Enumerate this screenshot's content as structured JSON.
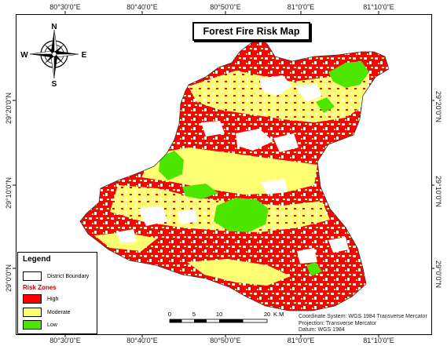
{
  "title": "Forest Fire Risk Map",
  "top_labels": [
    "80°30'0\"E",
    "80°40'0\"E",
    "80°50'0\"E",
    "81°0'0\"E",
    "81°10'0\"E"
  ],
  "bottom_labels": [
    "80°30'0\"E",
    "80°40'0\"E",
    "80°50'0\"E",
    "81°0'0\"E",
    "81°10'0\"E"
  ],
  "left_labels": [
    "29°20'0\"N",
    "29°10'0\"N",
    "29°0'0\"N"
  ],
  "right_labels": [
    "29°20'0\"N",
    "29°10'0\"N",
    "29°0'0\"N"
  ],
  "compass": {
    "n": "N",
    "s": "S",
    "e": "E",
    "w": "W"
  },
  "legend": {
    "title": "Legend",
    "boundary_label": "District Boundary",
    "zones_title": "Risk Zones",
    "items": [
      {
        "label": "High",
        "color": "#ff0000"
      },
      {
        "label": "Moderate",
        "color": "#ffff73"
      },
      {
        "label": "Low",
        "color": "#4ce600"
      }
    ]
  },
  "scale": {
    "ticks": [
      "0",
      "5",
      "10",
      "20"
    ],
    "unit": "K.M"
  },
  "info": {
    "coordinate_system": "Coordinate System: WGS 1984 Transverse Mercator",
    "projection": "Projection: Transverse Mercator",
    "datum": "Datum: WGS 1984"
  },
  "colors": {
    "high": "#ff0000",
    "moderate": "#ffff73",
    "low": "#4ce600"
  }
}
